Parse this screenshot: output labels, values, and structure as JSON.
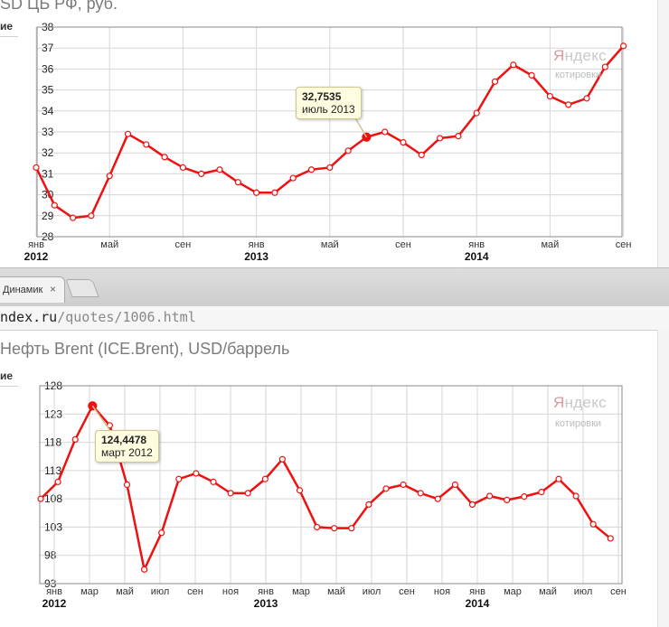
{
  "top_panel": {
    "title": "SD ЦБ РФ, руб.",
    "cut_label": "ие",
    "tooltip": {
      "value": "32,7535",
      "date": "июль 2013"
    },
    "logo": {
      "first": "Я",
      "rest": "ндекс",
      "sub": "котировки"
    }
  },
  "browser": {
    "tab_title": "Динамик",
    "tab_close": "×",
    "address_host": "ndex.ru",
    "address_path": "/quotes/1006.html"
  },
  "bottom_panel": {
    "title": "Нефть Brent (ICE.Brent), USD/баррель",
    "cut_label": "ие",
    "tooltip": {
      "value": "124,4478",
      "date": "март 2012"
    },
    "logo": {
      "first": "Я",
      "rest": "ндекс",
      "sub": "котировки"
    }
  },
  "colors": {
    "line": "#ee1111",
    "grid": "#d6d6d6",
    "frame": "#888888"
  },
  "chart_data": [
    {
      "type": "line",
      "title": "USD ЦБ РФ, руб.",
      "ylim": [
        28,
        38
      ],
      "yticks": [
        "28",
        "29",
        "30",
        "31",
        "32",
        "33",
        "34",
        "35",
        "36",
        "37",
        "38"
      ],
      "month_labels": [
        "янв",
        "май",
        "сен",
        "янв",
        "май",
        "сен",
        "янв",
        "май",
        "сен"
      ],
      "year_labels": [
        "2012",
        "2013",
        "2014"
      ],
      "values": [
        31.3,
        29.5,
        28.9,
        29.0,
        30.9,
        32.9,
        32.4,
        31.8,
        31.3,
        31.0,
        31.2,
        30.6,
        30.1,
        30.1,
        30.8,
        31.2,
        31.3,
        32.1,
        32.7535,
        33.0,
        32.5,
        31.9,
        32.7,
        32.8,
        33.9,
        35.4,
        36.2,
        35.7,
        34.7,
        34.3,
        34.6,
        36.1,
        37.1
      ],
      "highlight": {
        "index": 18,
        "value": 32.7535,
        "label": "июль 2013"
      },
      "grid": true
    },
    {
      "type": "line",
      "title": "Нефть Brent (ICE.Brent), USD/баррель",
      "ylim": [
        93,
        128
      ],
      "yticks": [
        "93",
        "98",
        "103",
        "108",
        "113",
        "118",
        "123",
        "128"
      ],
      "month_labels": [
        "янв",
        "мар",
        "май",
        "июл",
        "сен",
        "ноя",
        "янв",
        "мар",
        "май",
        "июл",
        "сен",
        "ноя",
        "янв",
        "мар",
        "май",
        "июл",
        "сен"
      ],
      "year_labels": [
        "2012",
        "2013",
        "2014"
      ],
      "values": [
        108.0,
        111.0,
        118.5,
        124.4478,
        121.0,
        110.5,
        95.5,
        102.0,
        111.5,
        112.5,
        111.0,
        109.0,
        109.0,
        111.5,
        115.0,
        109.5,
        103.0,
        102.8,
        102.8,
        107.0,
        109.8,
        110.5,
        109.0,
        108.0,
        110.5,
        107.0,
        108.5,
        107.8,
        108.4,
        109.2,
        111.5,
        108.5,
        103.5,
        101.0
      ],
      "highlight": {
        "index": 3,
        "value": 124.4478,
        "label": "март 2012"
      },
      "grid": true
    }
  ]
}
